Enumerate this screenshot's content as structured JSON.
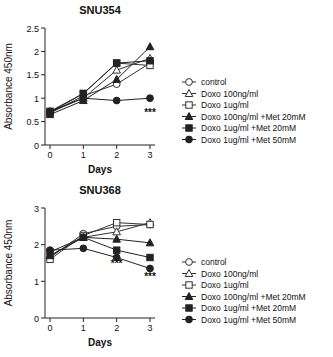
{
  "chart_data": [
    {
      "type": "line",
      "title": "SNU354",
      "x_label": "Days",
      "y_label": "Absorbance 450nm",
      "x": [
        0,
        1,
        2,
        3
      ],
      "xlim": [
        -0.15,
        3.15
      ],
      "xticks": [
        0,
        1,
        2,
        3
      ],
      "ylim": [
        0,
        2.5
      ],
      "yticks": [
        0,
        0.5,
        1,
        1.5,
        2,
        2.5
      ],
      "legend": "right",
      "annotations": [
        {
          "text": "***",
          "x": 3,
          "y": 0.62
        }
      ],
      "series": [
        {
          "name": "control",
          "color": "#333333",
          "marker": "circle-open",
          "values": [
            0.68,
            1.05,
            1.3,
            1.75
          ]
        },
        {
          "name": "Doxo 100ng/ml",
          "color": "#333333",
          "marker": "triangle-open",
          "values": [
            0.7,
            1.0,
            1.6,
            1.85
          ]
        },
        {
          "name": "Doxo 1ug/ml",
          "color": "#333333",
          "marker": "square-open",
          "values": [
            0.72,
            1.1,
            1.75,
            1.7
          ]
        },
        {
          "name": "Doxo 100ng/ml +Met 20mM",
          "color": "#222222",
          "marker": "triangle-filled",
          "values": [
            0.65,
            0.95,
            1.4,
            2.1
          ]
        },
        {
          "name": "Doxo 1ug/ml +Met 20mM",
          "color": "#222222",
          "marker": "square-filled",
          "values": [
            0.7,
            1.1,
            1.75,
            1.8
          ]
        },
        {
          "name": "Doxo 1ug/ml +Met 50mM",
          "color": "#222222",
          "marker": "circle-filled",
          "values": [
            0.72,
            1.0,
            0.95,
            1.0
          ]
        }
      ]
    },
    {
      "type": "line",
      "title": "SNU368",
      "x_label": "Days",
      "y_label": "Absorbance 450nm",
      "x": [
        0,
        1,
        2,
        3
      ],
      "xlim": [
        -0.15,
        3.15
      ],
      "xticks": [
        0,
        1,
        2,
        3
      ],
      "ylim": [
        0,
        3
      ],
      "yticks": [
        0,
        1,
        2,
        3
      ],
      "legend": "right",
      "annotations": [
        {
          "text": "***",
          "x": 2,
          "y": 1.4
        },
        {
          "text": "***",
          "x": 3,
          "y": 1.05
        }
      ],
      "series": [
        {
          "name": "control",
          "color": "#333333",
          "marker": "circle-open",
          "values": [
            1.65,
            2.3,
            2.5,
            2.55
          ]
        },
        {
          "name": "Doxo 100ng/ml",
          "color": "#333333",
          "marker": "triangle-open",
          "values": [
            1.7,
            2.2,
            2.35,
            2.6
          ]
        },
        {
          "name": "Doxo 1ug/ml",
          "color": "#333333",
          "marker": "square-open",
          "values": [
            1.6,
            2.25,
            2.6,
            2.55
          ]
        },
        {
          "name": "Doxo 100ng/ml +Met 20mM",
          "color": "#222222",
          "marker": "triangle-filled",
          "values": [
            1.7,
            2.2,
            2.15,
            2.05
          ]
        },
        {
          "name": "Doxo 1ug/ml +Met 20mM",
          "color": "#222222",
          "marker": "square-filled",
          "values": [
            1.8,
            2.2,
            1.85,
            1.65
          ]
        },
        {
          "name": "Doxo 1ug/ml +Met 50mM",
          "color": "#222222",
          "marker": "circle-filled",
          "values": [
            1.85,
            1.9,
            1.65,
            1.35
          ]
        }
      ]
    }
  ]
}
